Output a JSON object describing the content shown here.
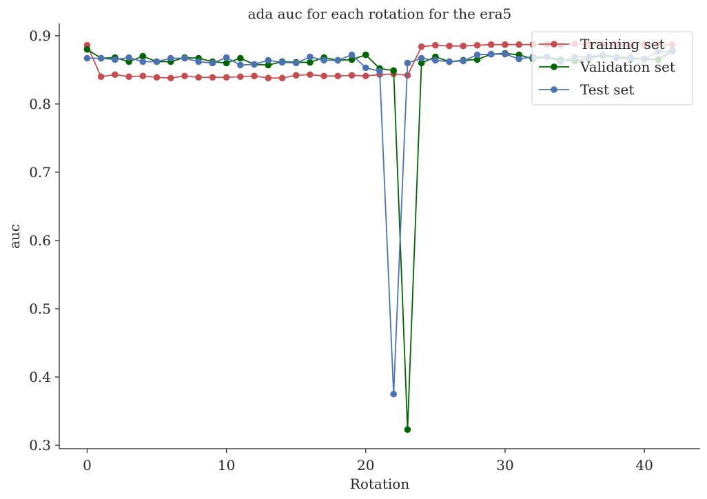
{
  "chart_data": {
    "type": "line",
    "title": "ada auc for each rotation for the era5",
    "xlabel": "Rotation",
    "ylabel": "auc",
    "xlim": [
      -2,
      44
    ],
    "ylim": [
      0.295,
      0.918
    ],
    "xticks": [
      0,
      10,
      20,
      30,
      40
    ],
    "xtick_labels": [
      "0",
      "10",
      "20",
      "30",
      "40"
    ],
    "yticks": [
      0.3,
      0.4,
      0.5,
      0.6,
      0.7,
      0.8,
      0.9
    ],
    "ytick_labels": [
      "0.3",
      "0.4",
      "0.5",
      "0.6",
      "0.7",
      "0.8",
      "0.9"
    ],
    "grid": false,
    "legend_position": "top-right",
    "x": [
      0,
      1,
      2,
      3,
      4,
      5,
      6,
      7,
      8,
      9,
      10,
      11,
      12,
      13,
      14,
      15,
      16,
      17,
      18,
      19,
      20,
      21,
      22,
      23,
      24,
      25,
      26,
      27,
      28,
      29,
      30,
      31,
      32,
      33,
      34,
      35,
      36,
      37,
      38,
      39,
      40,
      41,
      42
    ],
    "series": [
      {
        "name": "Training set",
        "color": "#c44e52",
        "values": [
          0.886,
          0.84,
          0.843,
          0.84,
          0.841,
          0.839,
          0.838,
          0.841,
          0.839,
          0.839,
          0.839,
          0.84,
          0.841,
          0.838,
          0.838,
          0.842,
          0.843,
          0.841,
          0.841,
          0.842,
          0.841,
          0.843,
          0.844,
          0.842,
          0.884,
          0.886,
          0.885,
          0.885,
          0.886,
          0.887,
          0.887,
          0.887,
          0.887,
          0.887,
          0.886,
          0.888,
          0.887,
          0.887,
          0.887,
          0.886,
          0.887,
          0.887,
          0.887
        ]
      },
      {
        "name": "Validation set",
        "color": "#006400",
        "values": [
          0.88,
          0.867,
          0.868,
          0.862,
          0.87,
          0.862,
          0.862,
          0.868,
          0.867,
          0.862,
          0.86,
          0.867,
          0.858,
          0.857,
          0.862,
          0.861,
          0.861,
          0.868,
          0.864,
          0.865,
          0.872,
          0.852,
          0.849,
          0.323,
          0.86,
          0.869,
          0.862,
          0.864,
          0.865,
          0.873,
          0.874,
          0.872,
          0.866,
          0.869,
          0.865,
          0.863,
          0.867,
          0.871,
          0.868,
          0.866,
          0.866,
          0.865,
          0.878
        ]
      },
      {
        "name": "Test set",
        "color": "#4c72b0",
        "values": [
          0.867,
          0.867,
          0.865,
          0.868,
          0.862,
          0.862,
          0.867,
          0.867,
          0.862,
          0.86,
          0.868,
          0.857,
          0.858,
          0.864,
          0.861,
          0.86,
          0.869,
          0.864,
          0.864,
          0.872,
          0.853,
          0.848,
          0.375,
          0.86,
          0.867,
          0.864,
          0.862,
          0.863,
          0.872,
          0.873,
          0.873,
          0.866,
          0.869,
          0.869,
          0.862,
          0.869,
          0.869,
          0.872,
          0.869,
          0.868,
          0.866,
          0.877,
          0.877
        ]
      }
    ]
  }
}
